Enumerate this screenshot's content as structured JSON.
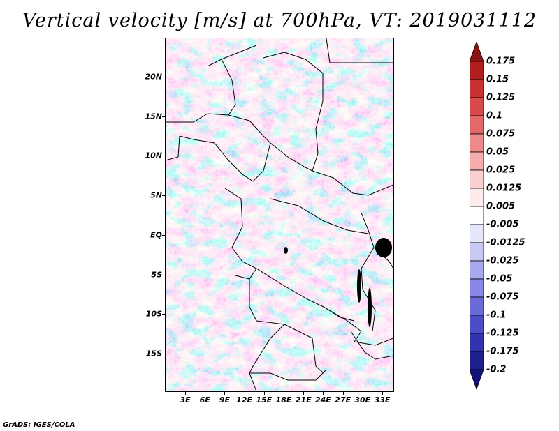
{
  "title": "Vertical velocity [m/s] at 700hPa, VT: 2019031112",
  "footer": "GrADS: IGES/COLA",
  "map": {
    "variable": "Vertical velocity",
    "units": "m/s",
    "level": "700hPa",
    "valid_time": "2019031112",
    "lat_labels": [
      "20N",
      "15N",
      "10N",
      "5N",
      "EQ",
      "5S",
      "10S",
      "15S"
    ],
    "lon_labels": [
      "3E",
      "6E",
      "9E",
      "12E",
      "15E",
      "18E",
      "21E",
      "24E",
      "27E",
      "30E",
      "33E"
    ]
  },
  "colorbar": {
    "labels": [
      "0.175",
      "0.15",
      "0.125",
      "0.1",
      "0.075",
      "0.05",
      "0.025",
      "0.0125",
      "0.005",
      "-0.005",
      "-0.0125",
      "-0.025",
      "-0.05",
      "-0.075",
      "-0.1",
      "-0.125",
      "-0.175",
      "-0.2"
    ],
    "colors": [
      "#8c1313",
      "#b01e1e",
      "#c93232",
      "#d94a4a",
      "#e36868",
      "#ec8a8a",
      "#f3abab",
      "#f9cfcf",
      "#fdeaea",
      "#ffffff",
      "#e6e6fb",
      "#c8c8f4",
      "#a8a8ee",
      "#8787e4",
      "#6a6ad8",
      "#4c4cc7",
      "#3333b0",
      "#1f1f90",
      "#12127a"
    ]
  }
}
